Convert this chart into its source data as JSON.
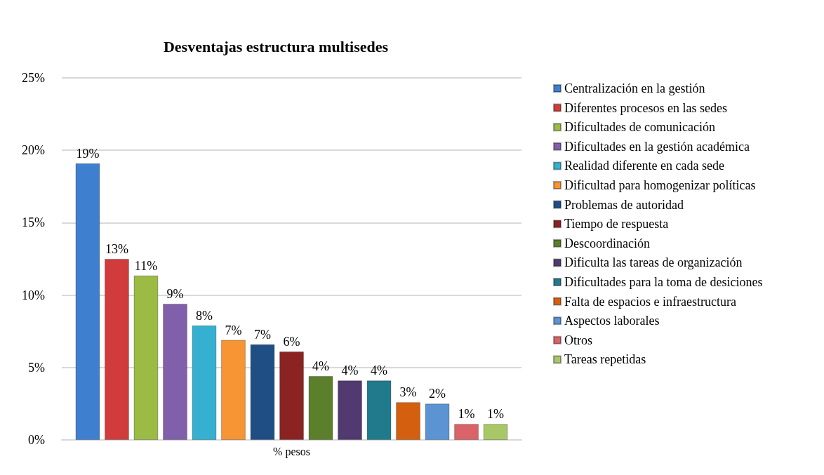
{
  "chart_data": {
    "type": "bar",
    "title": "Desventajas estructura multisedes",
    "categories": [
      "% pesos"
    ],
    "ylim": [
      0,
      25
    ],
    "yticks": [
      {
        "value": 0,
        "label": "0%"
      },
      {
        "value": 5,
        "label": "5%"
      },
      {
        "value": 10,
        "label": "10%"
      },
      {
        "value": 15,
        "label": "15%"
      },
      {
        "value": 20,
        "label": "20%"
      },
      {
        "value": 25,
        "label": "25%"
      }
    ],
    "grid": "y",
    "legend": "right",
    "series": [
      {
        "name": "Centralización en la gestión",
        "color": "#3f7fcf",
        "values": [
          19.1
        ],
        "value_labels": [
          "19%"
        ]
      },
      {
        "name": "Diferentes procesos en las sedes",
        "color": "#d13b3b",
        "values": [
          12.5
        ],
        "value_labels": [
          "13%"
        ]
      },
      {
        "name": "Dificultades de comunicación",
        "color": "#9bbb45",
        "values": [
          11.35
        ],
        "value_labels": [
          "11%"
        ]
      },
      {
        "name": "Dificultades en la gestión académica",
        "color": "#8060aa",
        "values": [
          9.4
        ],
        "value_labels": [
          "9%"
        ]
      },
      {
        "name": "Realidad diferente en cada sede",
        "color": "#35b0d0",
        "values": [
          7.9
        ],
        "value_labels": [
          "8%"
        ]
      },
      {
        "name": "Dificultad para homogenizar políticas",
        "color": "#f79433",
        "values": [
          6.9
        ],
        "value_labels": [
          "7%"
        ]
      },
      {
        "name": "Problemas de autoridad",
        "color": "#1f4e85",
        "values": [
          6.6
        ],
        "value_labels": [
          "7%"
        ]
      },
      {
        "name": "Tiempo de respuesta",
        "color": "#8b2323",
        "values": [
          6.1
        ],
        "value_labels": [
          "6%"
        ]
      },
      {
        "name": "Descoordinación",
        "color": "#5b7f2a",
        "values": [
          4.4
        ],
        "value_labels": [
          "4%"
        ]
      },
      {
        "name": "Dificulta las tareas de organización",
        "color": "#503a70",
        "values": [
          4.1
        ],
        "value_labels": [
          "4%"
        ]
      },
      {
        "name": "Dificultades para la toma de desiciones",
        "color": "#1f7a8c",
        "values": [
          4.1
        ],
        "value_labels": [
          "4%"
        ]
      },
      {
        "name": "Falta de espacios e infraestructura",
        "color": "#d4600f",
        "values": [
          2.6
        ],
        "value_labels": [
          "3%"
        ]
      },
      {
        "name": "Aspectos laborales",
        "color": "#5b93d3",
        "values": [
          2.5
        ],
        "value_labels": [
          "2%"
        ]
      },
      {
        "name": "Otros",
        "color": "#d96366",
        "values": [
          1.1
        ],
        "value_labels": [
          "1%"
        ]
      },
      {
        "name": "Tareas repetidas",
        "color": "#a8c868",
        "values": [
          1.1
        ],
        "value_labels": [
          "1%"
        ]
      }
    ]
  }
}
